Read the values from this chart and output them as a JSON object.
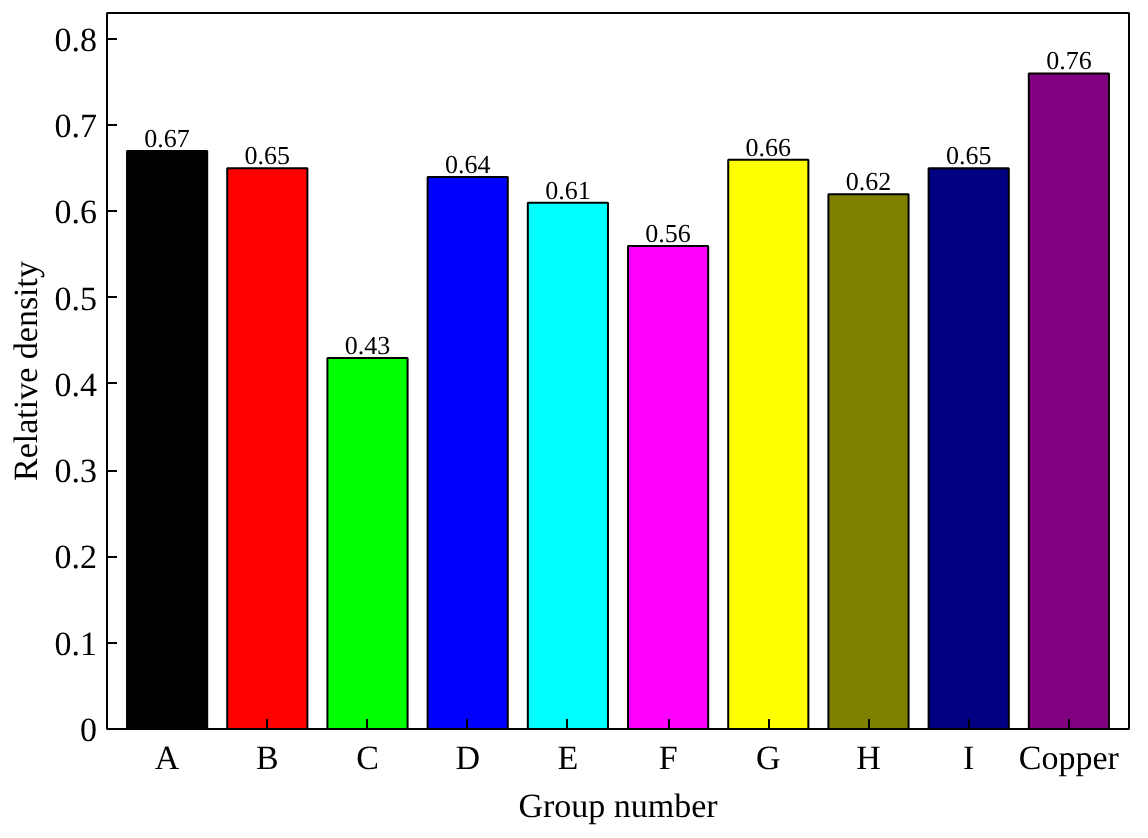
{
  "chart_data": {
    "type": "bar",
    "xlabel": "Group number",
    "ylabel": "Relative density",
    "categories": [
      "A",
      "B",
      "C",
      "D",
      "E",
      "F",
      "G",
      "H",
      "I",
      "Copper"
    ],
    "values": [
      0.67,
      0.65,
      0.43,
      0.64,
      0.61,
      0.56,
      0.66,
      0.62,
      0.65,
      0.76
    ],
    "colors": [
      "#000000",
      "#ff0000",
      "#00ff00",
      "#0000ff",
      "#00ffff",
      "#ff00ff",
      "#ffff00",
      "#808000",
      "#000080",
      "#800080"
    ],
    "ylim": [
      0,
      0.83
    ],
    "yticks": [
      0,
      0.1,
      0.2,
      0.3,
      0.4,
      0.5,
      0.6,
      0.7,
      0.8
    ],
    "data_labels": true,
    "grid": false
  }
}
